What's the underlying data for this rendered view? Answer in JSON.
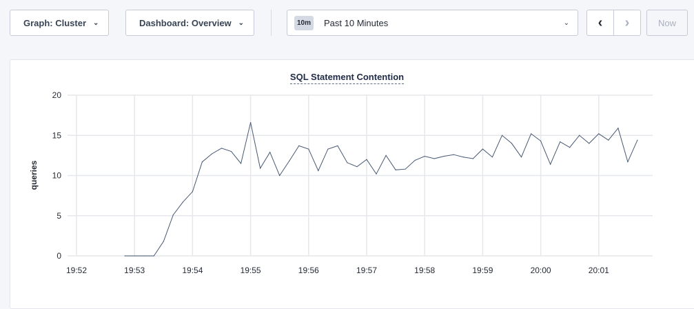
{
  "toolbar": {
    "graph_label": "Graph: Cluster",
    "dashboard_label": "Dashboard: Overview",
    "time_badge": "10m",
    "time_label": "Past 10 Minutes",
    "prev_icon": "chevron-left-icon",
    "next_icon": "chevron-right-icon",
    "now_label": "Now"
  },
  "chart_data": {
    "type": "line",
    "title": "SQL Statement Contention",
    "ylabel": "queries",
    "xlabel": "",
    "ylim": [
      0,
      20
    ],
    "yticks": [
      0,
      5,
      10,
      15,
      20
    ],
    "xticks": [
      "19:52",
      "19:53",
      "19:54",
      "19:55",
      "19:56",
      "19:57",
      "19:58",
      "19:59",
      "20:00",
      "20:01"
    ],
    "grid": true,
    "line_color": "#475872",
    "x": [
      "19:52:50",
      "19:53:00",
      "19:53:10",
      "19:53:20",
      "19:53:30",
      "19:53:40",
      "19:53:50",
      "19:54:00",
      "19:54:10",
      "19:54:20",
      "19:54:30",
      "19:54:40",
      "19:54:50",
      "19:55:00",
      "19:55:10",
      "19:55:20",
      "19:55:30",
      "19:55:40",
      "19:55:50",
      "19:56:00",
      "19:56:10",
      "19:56:20",
      "19:56:30",
      "19:56:40",
      "19:56:50",
      "19:57:00",
      "19:57:10",
      "19:57:20",
      "19:57:30",
      "19:57:40",
      "19:57:50",
      "19:58:00",
      "19:58:10",
      "19:58:20",
      "19:58:30",
      "19:58:40",
      "19:58:50",
      "19:59:00",
      "19:59:10",
      "19:59:20",
      "19:59:30",
      "19:59:40",
      "19:59:50",
      "20:00:00",
      "20:00:10",
      "20:00:20",
      "20:00:30",
      "20:00:40",
      "20:00:50",
      "20:01:00",
      "20:01:10",
      "20:01:20",
      "20:01:30",
      "20:01:40"
    ],
    "values": [
      0,
      0,
      0,
      0,
      1.8,
      5.1,
      6.7,
      8,
      11.7,
      12.7,
      13.4,
      13,
      11.5,
      16.6,
      10.9,
      12.9,
      10,
      11.8,
      13.7,
      13.3,
      10.6,
      13.3,
      13.7,
      11.6,
      11.1,
      12,
      10.2,
      12.5,
      10.7,
      10.8,
      11.9,
      12.4,
      12.1,
      12.4,
      12.6,
      12.3,
      12.1,
      13.3,
      12.3,
      15,
      14,
      12.3,
      15.2,
      14.3,
      11.4,
      14.2,
      13.5,
      15,
      14,
      15.2,
      14.4,
      15.9,
      11.7,
      14.4
    ]
  }
}
